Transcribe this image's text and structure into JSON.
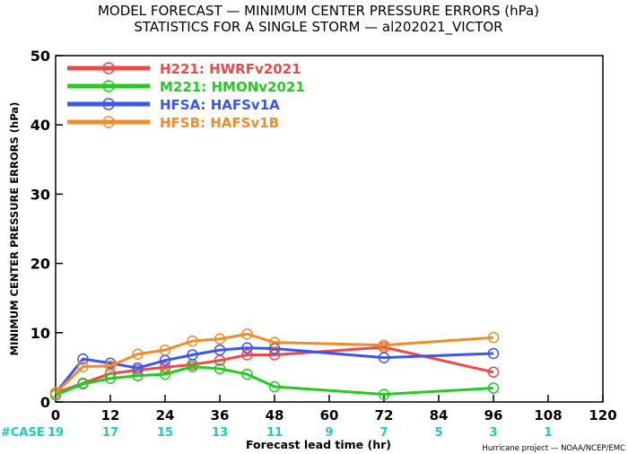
{
  "title_line1": "MODEL FORECAST — MINIMUM CENTER PRESSURE ERRORS (hPa)",
  "title_line2": "STATISTICS FOR A SINGLE STORM — al202021_VICTOR",
  "credit": "Hurricane project — NOAA/NCEP/EMC",
  "case_label": "#CASE",
  "chart_data": {
    "type": "line",
    "xlabel": "Forecast lead time (hr)",
    "ylabel": "MINIMUM CENTER PRESSURE ERRORS (hPa)",
    "xlim": [
      0,
      120
    ],
    "ylim": [
      0,
      50
    ],
    "xticks": [
      0,
      12,
      24,
      36,
      48,
      60,
      72,
      84,
      96,
      108,
      120
    ],
    "yticks": [
      0,
      10,
      20,
      30,
      40,
      50
    ],
    "grid": false,
    "legend_position": "top-left",
    "case_counts": [
      {
        "x": 0,
        "count": "19"
      },
      {
        "x": 12,
        "count": "17"
      },
      {
        "x": 24,
        "count": "15"
      },
      {
        "x": 36,
        "count": "13"
      },
      {
        "x": 48,
        "count": "11"
      },
      {
        "x": 60,
        "count": "9"
      },
      {
        "x": 72,
        "count": "7"
      },
      {
        "x": 84,
        "count": "5"
      },
      {
        "x": 96,
        "count": "3"
      },
      {
        "x": 108,
        "count": "1"
      }
    ],
    "series": [
      {
        "name": "H221: HWRFv2021",
        "color": "#f04848",
        "x": [
          0,
          6,
          12,
          18,
          24,
          30,
          36,
          42,
          48,
          72,
          96
        ],
        "y": [
          1.3,
          2.7,
          4.1,
          4.6,
          5.0,
          5.4,
          6.0,
          6.8,
          6.8,
          7.9,
          4.3
        ]
      },
      {
        "name": "M221: HMONv2021",
        "color": "#22cc22",
        "x": [
          0,
          6,
          12,
          18,
          24,
          30,
          36,
          42,
          48,
          72,
          96
        ],
        "y": [
          1.0,
          2.6,
          3.4,
          3.8,
          4.0,
          5.1,
          4.8,
          4.0,
          2.2,
          1.1,
          2.0
        ]
      },
      {
        "name": "HFSA: HAFSv1A",
        "color": "#3a56f0",
        "x": [
          0,
          6,
          12,
          18,
          24,
          30,
          36,
          42,
          48,
          72,
          96
        ],
        "y": [
          1.3,
          6.2,
          5.6,
          4.9,
          6.0,
          6.8,
          7.5,
          7.8,
          7.7,
          6.4,
          7.0
        ]
      },
      {
        "name": "HFSB: HAFSv1B",
        "color": "#f28c28",
        "x": [
          0,
          6,
          12,
          18,
          24,
          30,
          36,
          42,
          48,
          72,
          96
        ],
        "y": [
          1.3,
          5.1,
          5.2,
          6.9,
          7.5,
          8.8,
          9.1,
          9.8,
          8.6,
          8.2,
          9.3
        ]
      }
    ]
  }
}
